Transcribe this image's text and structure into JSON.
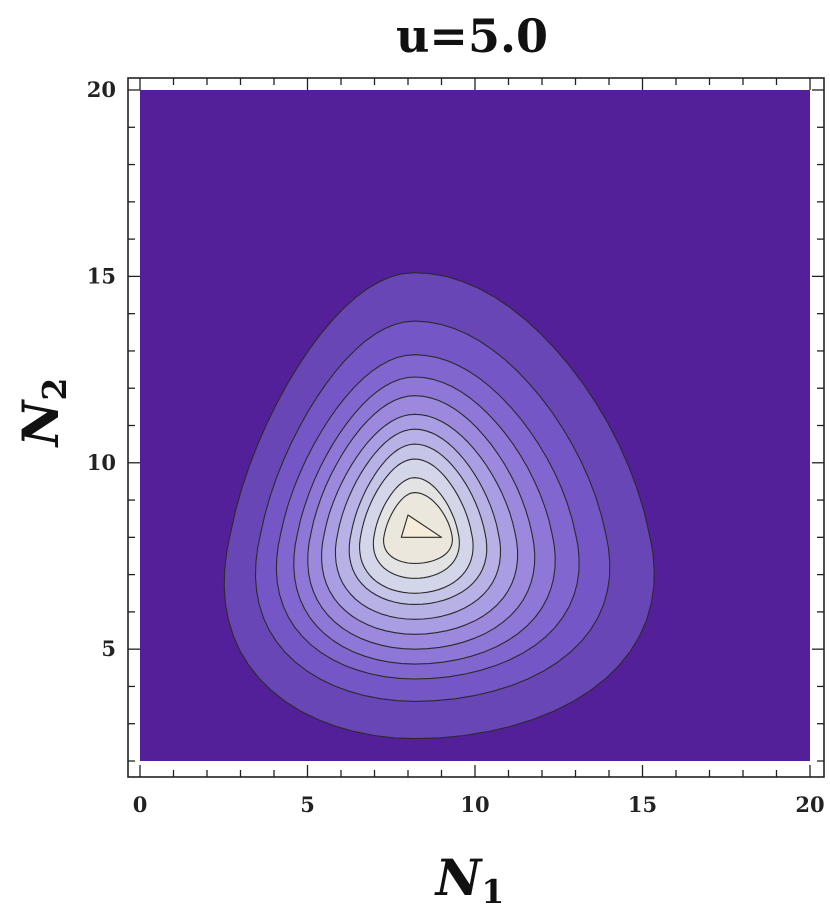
{
  "chart_data": {
    "type": "contour",
    "title": "u=5.0",
    "xlabel": {
      "base": "N",
      "sub": "1"
    },
    "ylabel": {
      "base": "N",
      "sub": "2"
    },
    "xlim": [
      0,
      20
    ],
    "ylim": [
      2,
      20
    ],
    "x_ticks": [
      0,
      5,
      10,
      15,
      20
    ],
    "y_ticks": [
      5,
      10,
      15,
      20
    ],
    "x_tick_labels": [
      "0",
      "5",
      "10",
      "15",
      "20"
    ],
    "y_tick_labels": [
      "5",
      "10",
      "15",
      "20"
    ],
    "peak": {
      "x": 8.2,
      "y": 8.1
    },
    "levels": [
      {
        "level": 1,
        "xmin": 2.7,
        "xmax": 15.2,
        "ymin": 2.6,
        "ymax": 15.1,
        "color": "#6846b6"
      },
      {
        "level": 2,
        "xmin": 3.6,
        "xmax": 13.9,
        "ymin": 3.6,
        "ymax": 13.8,
        "color": "#7556c6"
      },
      {
        "level": 3,
        "xmin": 4.2,
        "xmax": 13.0,
        "ymin": 4.2,
        "ymax": 12.9,
        "color": "#8266d0"
      },
      {
        "level": 4,
        "xmin": 4.7,
        "xmax": 12.3,
        "ymin": 4.6,
        "ymax": 12.3,
        "color": "#8f77d8"
      },
      {
        "level": 5,
        "xmin": 5.1,
        "xmax": 11.7,
        "ymin": 5.0,
        "ymax": 11.8,
        "color": "#9c89de"
      },
      {
        "level": 6,
        "xmin": 5.5,
        "xmax": 11.2,
        "ymin": 5.4,
        "ymax": 11.3,
        "color": "#a99de3"
      },
      {
        "level": 7,
        "xmin": 5.9,
        "xmax": 10.7,
        "ymin": 5.8,
        "ymax": 10.9,
        "color": "#b8b1e6"
      },
      {
        "level": 8,
        "xmin": 6.3,
        "xmax": 10.3,
        "ymin": 6.2,
        "ymax": 10.5,
        "color": "#c5c5e8"
      },
      {
        "level": 9,
        "xmin": 6.6,
        "xmax": 9.9,
        "ymin": 6.5,
        "ymax": 10.1,
        "color": "#d2d6e8"
      },
      {
        "level": 10,
        "xmin": 7.0,
        "xmax": 9.5,
        "ymin": 6.9,
        "ymax": 9.6,
        "color": "#e2e3e2"
      },
      {
        "level": 11,
        "xmin": 7.3,
        "xmax": 9.3,
        "ymin": 7.3,
        "ymax": 9.2,
        "color": "#ece7dc"
      }
    ],
    "peak_triangle": [
      [
        7.8,
        8.0
      ],
      [
        8.0,
        8.6
      ],
      [
        9.0,
        8.0
      ]
    ],
    "peak_color": "#f5ecda",
    "background_color": "#54209a",
    "grid": false,
    "legend": "none"
  }
}
